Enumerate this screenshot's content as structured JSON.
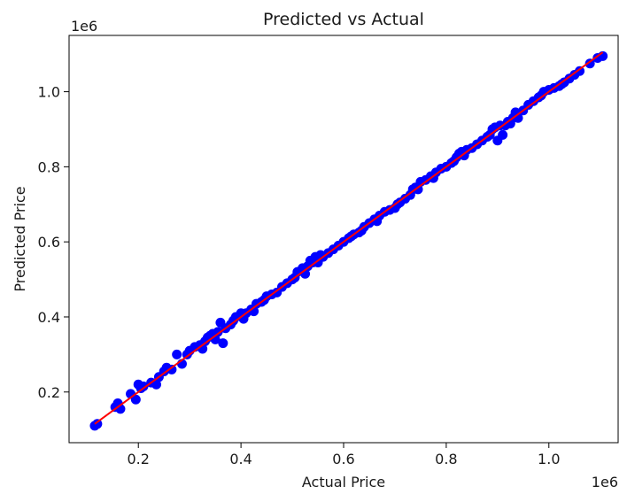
{
  "chart_data": {
    "type": "scatter",
    "title": "Predicted vs Actual",
    "xlabel": "Actual Price",
    "ylabel": "Predicted Price",
    "x_offset_label": "1e6",
    "y_offset_label": "1e6",
    "xlim": [
      0.065,
      1.135
    ],
    "ylim": [
      0.065,
      1.15
    ],
    "xticks": [
      0.2,
      0.4,
      0.6,
      0.8,
      1.0
    ],
    "yticks": [
      0.2,
      0.4,
      0.6,
      0.8,
      1.0
    ],
    "xtick_labels": [
      "0.2",
      "0.4",
      "0.6",
      "0.8",
      "1.0"
    ],
    "ytick_labels": [
      "0.2",
      "0.4",
      "0.6",
      "0.8",
      "1.0"
    ],
    "grid": false,
    "colors": {
      "points": "#0000ff",
      "reference_line": "#ff0000",
      "axes": "#000000"
    },
    "reference_line": {
      "x": [
        0.115,
        1.105
      ],
      "y": [
        0.115,
        1.105
      ]
    },
    "series": [
      {
        "x": [
          0.115,
          0.12,
          0.155,
          0.16,
          0.165,
          0.185,
          0.195,
          0.2,
          0.205,
          0.21,
          0.225,
          0.235,
          0.24,
          0.25,
          0.255,
          0.265,
          0.275,
          0.285,
          0.295,
          0.3,
          0.31,
          0.32,
          0.325,
          0.33,
          0.335,
          0.34,
          0.345,
          0.35,
          0.355,
          0.36,
          0.365,
          0.37,
          0.38,
          0.385,
          0.39,
          0.4,
          0.405,
          0.41,
          0.42,
          0.425,
          0.43,
          0.44,
          0.445,
          0.45,
          0.46,
          0.47,
          0.48,
          0.49,
          0.5,
          0.505,
          0.51,
          0.52,
          0.525,
          0.53,
          0.535,
          0.54,
          0.545,
          0.55,
          0.555,
          0.56,
          0.57,
          0.58,
          0.59,
          0.6,
          0.61,
          0.615,
          0.62,
          0.63,
          0.635,
          0.64,
          0.65,
          0.66,
          0.665,
          0.67,
          0.68,
          0.69,
          0.7,
          0.705,
          0.71,
          0.72,
          0.73,
          0.735,
          0.74,
          0.745,
          0.75,
          0.76,
          0.77,
          0.775,
          0.78,
          0.79,
          0.8,
          0.81,
          0.815,
          0.82,
          0.825,
          0.83,
          0.835,
          0.84,
          0.85,
          0.86,
          0.87,
          0.88,
          0.885,
          0.89,
          0.895,
          0.9,
          0.905,
          0.91,
          0.915,
          0.92,
          0.925,
          0.93,
          0.935,
          0.94,
          0.95,
          0.96,
          0.97,
          0.98,
          0.985,
          0.99,
          1.0,
          1.01,
          1.02,
          1.025,
          1.03,
          1.04,
          1.05,
          1.06,
          1.08,
          1.095,
          1.105
        ],
        "y": [
          0.11,
          0.115,
          0.16,
          0.17,
          0.155,
          0.195,
          0.18,
          0.22,
          0.21,
          0.215,
          0.225,
          0.22,
          0.24,
          0.255,
          0.265,
          0.26,
          0.3,
          0.275,
          0.3,
          0.31,
          0.32,
          0.325,
          0.315,
          0.335,
          0.345,
          0.35,
          0.355,
          0.34,
          0.36,
          0.385,
          0.33,
          0.37,
          0.38,
          0.39,
          0.4,
          0.41,
          0.395,
          0.41,
          0.42,
          0.415,
          0.435,
          0.44,
          0.445,
          0.455,
          0.46,
          0.465,
          0.48,
          0.49,
          0.5,
          0.505,
          0.52,
          0.53,
          0.515,
          0.535,
          0.55,
          0.545,
          0.56,
          0.545,
          0.565,
          0.56,
          0.57,
          0.58,
          0.59,
          0.6,
          0.61,
          0.615,
          0.62,
          0.625,
          0.63,
          0.64,
          0.65,
          0.66,
          0.655,
          0.67,
          0.68,
          0.685,
          0.69,
          0.7,
          0.705,
          0.715,
          0.725,
          0.74,
          0.745,
          0.74,
          0.76,
          0.765,
          0.775,
          0.77,
          0.785,
          0.795,
          0.8,
          0.81,
          0.815,
          0.825,
          0.835,
          0.84,
          0.83,
          0.845,
          0.85,
          0.86,
          0.87,
          0.88,
          0.885,
          0.9,
          0.905,
          0.87,
          0.91,
          0.885,
          0.91,
          0.92,
          0.915,
          0.93,
          0.945,
          0.93,
          0.95,
          0.965,
          0.975,
          0.985,
          0.99,
          1.0,
          1.005,
          1.01,
          1.015,
          1.02,
          1.025,
          1.035,
          1.045,
          1.055,
          1.075,
          1.09,
          1.095
        ]
      }
    ]
  }
}
